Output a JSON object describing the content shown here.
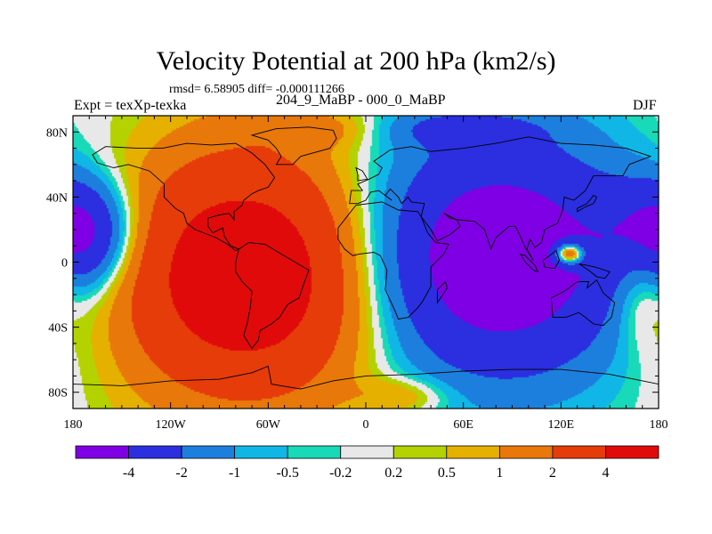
{
  "chart_data": {
    "type": "heatmap",
    "subtype": "filled-contour-map",
    "title": "Velocity Potential at 200 hPa (km2/s)",
    "stats_text": "rmsd= 6.58905 diff= -0.000111266",
    "left_label": "Expt = texXp-texka",
    "center_label": "204_9_MaBP - 000_0_MaBP",
    "right_label": "DJF",
    "xlim": [
      -180,
      180
    ],
    "ylim": [
      -90,
      90
    ],
    "x_ticks": [
      {
        "value": -180,
        "label": "180"
      },
      {
        "value": -120,
        "label": "120W"
      },
      {
        "value": -60,
        "label": "60W"
      },
      {
        "value": 0,
        "label": "0"
      },
      {
        "value": 60,
        "label": "60E"
      },
      {
        "value": 120,
        "label": "120E"
      },
      {
        "value": 180,
        "label": "180"
      }
    ],
    "y_ticks": [
      {
        "value": 80,
        "label": "80N"
      },
      {
        "value": 40,
        "label": "40N"
      },
      {
        "value": 0,
        "label": "0"
      },
      {
        "value": -40,
        "label": "40S"
      },
      {
        "value": -80,
        "label": "80S"
      }
    ],
    "contour_levels": [
      -4,
      -2,
      -1,
      -0.5,
      -0.2,
      0.2,
      0.5,
      1,
      2,
      4
    ],
    "colorbar_labels": [
      "-4",
      "-2",
      "-1",
      "-0.5",
      "-0.2",
      "0.2",
      "0.5",
      "1",
      "2",
      "4"
    ],
    "colorbar_colors": [
      "#7f00e4",
      "#2b2fe0",
      "#1c7fde",
      "#10b7e6",
      "#18d9b8",
      "#e8e8e8",
      "#b4d200",
      "#e6b000",
      "#e8780a",
      "#e63c0a",
      "#e10a0a"
    ],
    "field_features": [
      {
        "name": "positive-maximum-americas-atlantic",
        "lon": -70,
        "lat": -10,
        "value": 4.5
      },
      {
        "name": "negative-minimum-africa-asia-pacific",
        "lon": 80,
        "lat": 0,
        "value": -4.5
      },
      {
        "name": "positive-center-maritime-continent",
        "lon": 125,
        "lat": 5,
        "value": 2.5
      },
      {
        "name": "negative-lobe-central-pacific",
        "lon": -170,
        "lat": 15,
        "value": -4
      }
    ]
  }
}
